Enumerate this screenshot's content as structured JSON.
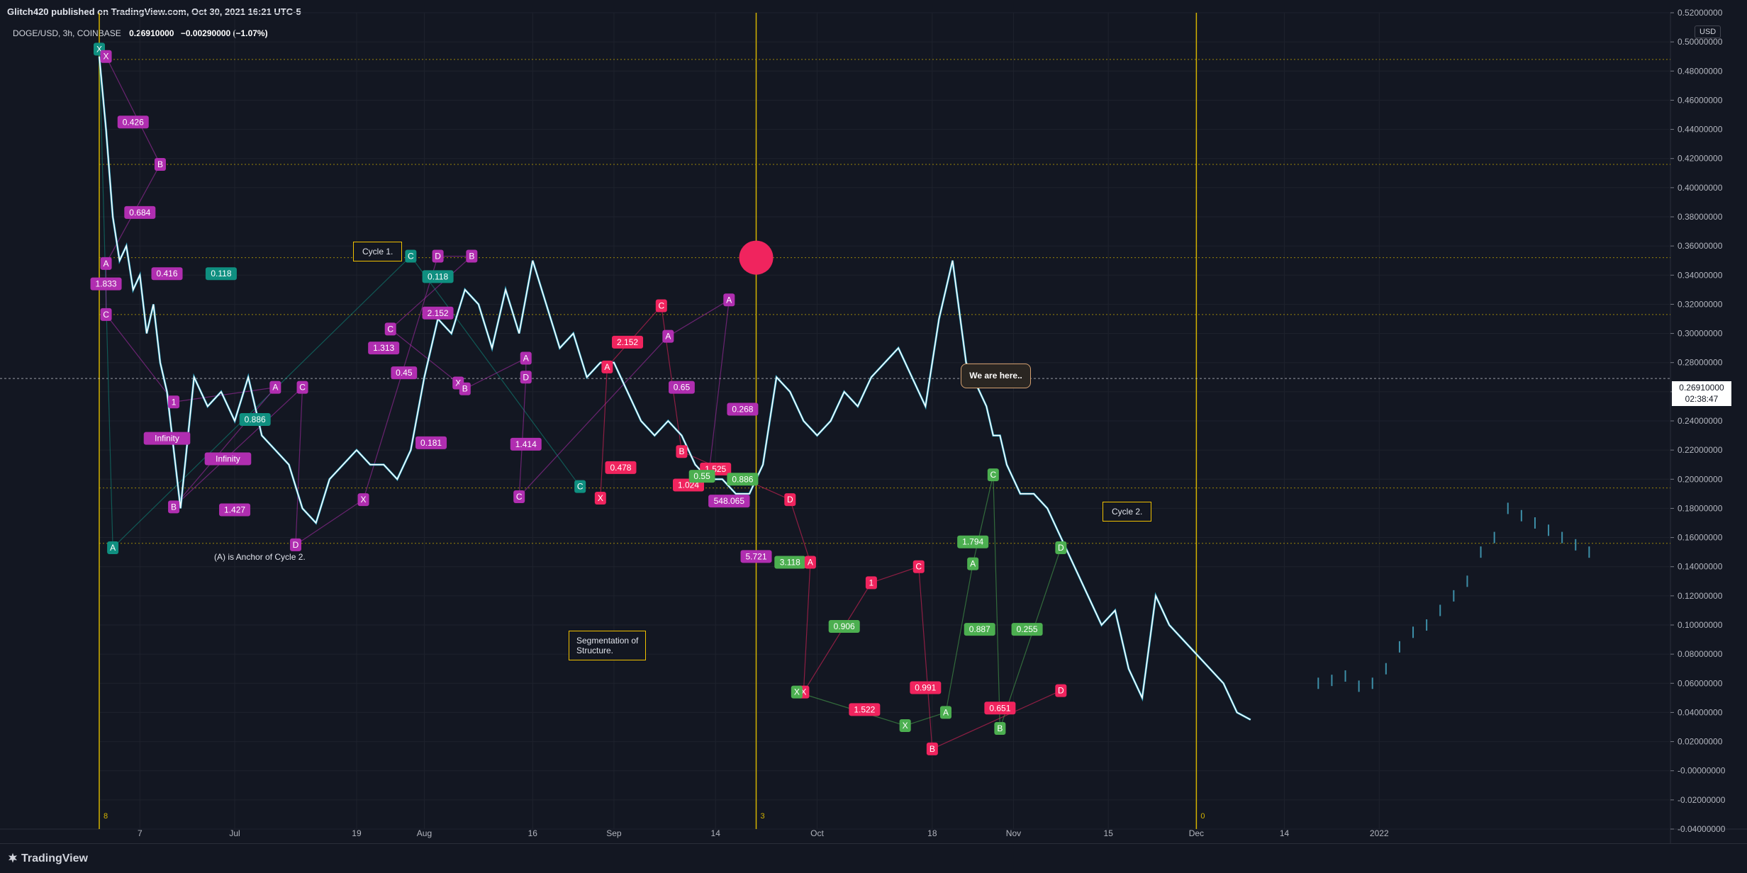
{
  "header": {
    "published": "Glitch420 published on TradingView.com, Oct 30, 2021 16:21 UTC-5",
    "symbol": "DOGE/USD, 3h, COINBASE",
    "price": "0.26910000",
    "change": "−0.00290000 (−1.07%)"
  },
  "currency_button": "USD",
  "price_tag": {
    "price": "0.26910000",
    "countdown": "02:38:47"
  },
  "notes": {
    "cycle1": "Cycle 1.",
    "cycle2": "Cycle 2.",
    "anchor": "(A) is Anchor of Cycle 2.",
    "segmentation_line1": "Segmentation of",
    "segmentation_line2": "Structure.",
    "we_are_here": "We are here.."
  },
  "footer": {
    "logo": "TradingView"
  },
  "colors": {
    "background": "#131722",
    "price_line": "#ffffff",
    "price_line_alt": "#29b6d8",
    "purple": "#9c27b0",
    "magenta_label": "#b02eb0",
    "pink": "#f0245e",
    "teal": "#0f8f80",
    "green": "#4caf50",
    "gold": "#d4b300",
    "grid": "#1e222d"
  },
  "chart_data": {
    "type": "line",
    "symbol": "DOGE/USD",
    "interval": "3h",
    "exchange": "COINBASE",
    "ylim": [
      -0.04,
      0.52
    ],
    "y_ticks": [
      "0.52000000",
      "0.50000000",
      "0.48000000",
      "0.46000000",
      "0.44000000",
      "0.42000000",
      "0.40000000",
      "0.38000000",
      "0.36000000",
      "0.34000000",
      "0.32000000",
      "0.30000000",
      "0.28000000",
      "0.26000000",
      "0.24000000",
      "0.22000000",
      "0.20000000",
      "0.18000000",
      "0.16000000",
      "0.14000000",
      "0.12000000",
      "0.10000000",
      "0.08000000",
      "0.06000000",
      "0.04000000",
      "0.02000000",
      "-0.00000000",
      "-0.02000000",
      "-0.04000000"
    ],
    "x_ticks": [
      "7",
      "Jul",
      "19",
      "Aug",
      "16",
      "Sep",
      "14",
      "Oct",
      "18",
      "Nov",
      "15",
      "Dec",
      "14",
      "2022"
    ],
    "x_range_days": [
      0,
      232
    ],
    "x_tick_days": [
      6,
      20,
      38,
      48,
      64,
      76,
      91,
      106,
      123,
      135,
      149,
      162,
      175,
      189
    ],
    "series": [
      {
        "values_x_days": [
          0,
          1,
          2,
          3,
          4,
          5,
          6,
          7,
          8,
          9,
          10,
          12,
          14,
          16,
          18,
          20,
          22,
          24,
          26,
          28,
          30,
          32,
          34,
          36,
          38,
          40,
          42,
          44,
          46,
          48,
          50,
          52,
          54,
          56,
          58,
          60,
          62,
          64,
          66,
          68,
          70,
          72,
          74,
          76,
          78,
          80,
          82,
          84,
          86,
          88,
          90,
          92,
          94,
          96,
          98,
          100,
          102,
          104,
          106,
          108,
          110,
          112,
          114,
          116,
          118,
          120,
          122,
          124,
          126,
          128,
          130,
          131,
          132,
          133,
          134,
          135,
          136,
          138,
          140,
          142,
          144,
          146,
          148,
          150,
          152,
          154,
          156,
          158,
          160,
          162,
          164,
          166,
          168,
          170
        ],
        "values_y": [
          0.49,
          0.44,
          0.38,
          0.35,
          0.36,
          0.33,
          0.34,
          0.3,
          0.32,
          0.28,
          0.26,
          0.18,
          0.27,
          0.25,
          0.26,
          0.24,
          0.27,
          0.23,
          0.22,
          0.21,
          0.18,
          0.17,
          0.2,
          0.21,
          0.22,
          0.21,
          0.21,
          0.2,
          0.22,
          0.27,
          0.31,
          0.3,
          0.33,
          0.32,
          0.29,
          0.33,
          0.3,
          0.35,
          0.32,
          0.29,
          0.3,
          0.27,
          0.28,
          0.28,
          0.26,
          0.24,
          0.23,
          0.24,
          0.23,
          0.21,
          0.2,
          0.2,
          0.19,
          0.19,
          0.21,
          0.27,
          0.26,
          0.24,
          0.23,
          0.24,
          0.26,
          0.25,
          0.27,
          0.28,
          0.29,
          0.27,
          0.25,
          0.31,
          0.35,
          0.28,
          0.26,
          0.25,
          0.23,
          0.23,
          0.21,
          0.2,
          0.19,
          0.19,
          0.18,
          0.16,
          0.14,
          0.12,
          0.1,
          0.11,
          0.07,
          0.05,
          0.12,
          0.1,
          0.09,
          0.08,
          0.07,
          0.06,
          0.04,
          0.035
        ]
      }
    ],
    "forecast_bars": {
      "values_x_days": [
        180,
        182,
        184,
        186,
        188,
        190,
        192,
        194,
        196,
        198,
        200,
        202,
        204,
        206,
        208,
        210,
        212,
        214,
        216,
        218,
        220
      ],
      "values_y": [
        0.06,
        0.062,
        0.065,
        0.058,
        0.06,
        0.07,
        0.085,
        0.095,
        0.1,
        0.11,
        0.12,
        0.13,
        0.15,
        0.16,
        0.18,
        0.175,
        0.17,
        0.165,
        0.16,
        0.155,
        0.15
      ]
    },
    "pattern_labels": [
      {
        "text": "X",
        "x": 0,
        "y": 0.495,
        "color": "teal"
      },
      {
        "text": "X",
        "x": 1,
        "y": 0.49,
        "color": "purple"
      },
      {
        "text": "0.426",
        "x": 5,
        "y": 0.445,
        "color": "purple"
      },
      {
        "text": "B",
        "x": 9,
        "y": 0.416,
        "color": "purple"
      },
      {
        "text": "0.684",
        "x": 6,
        "y": 0.383,
        "color": "purple"
      },
      {
        "text": "A",
        "x": 1,
        "y": 0.348,
        "color": "purple"
      },
      {
        "text": "1.833",
        "x": 1,
        "y": 0.334,
        "color": "purple"
      },
      {
        "text": "0.416",
        "x": 10,
        "y": 0.341,
        "color": "purple"
      },
      {
        "text": "0.118",
        "x": 18,
        "y": 0.341,
        "color": "teal"
      },
      {
        "text": "C",
        "x": 1,
        "y": 0.313,
        "color": "purple"
      },
      {
        "text": "1",
        "x": 11,
        "y": 0.253,
        "color": "purple"
      },
      {
        "text": "Infinity",
        "x": 10,
        "y": 0.228,
        "color": "purple"
      },
      {
        "text": "Infinity",
        "x": 19,
        "y": 0.214,
        "color": "purple"
      },
      {
        "text": "0.886",
        "x": 23,
        "y": 0.241,
        "color": "teal"
      },
      {
        "text": "A",
        "x": 26,
        "y": 0.263,
        "color": "purple"
      },
      {
        "text": "1.427",
        "x": 20,
        "y": 0.179,
        "color": "purple"
      },
      {
        "text": "B",
        "x": 11,
        "y": 0.181,
        "color": "purple"
      },
      {
        "text": "C",
        "x": 30,
        "y": 0.263,
        "color": "purple"
      },
      {
        "text": "D",
        "x": 29,
        "y": 0.155,
        "color": "purple"
      },
      {
        "text": "A",
        "x": 2,
        "y": 0.153,
        "color": "teal"
      },
      {
        "text": "X",
        "x": 39,
        "y": 0.186,
        "color": "purple"
      },
      {
        "text": "C",
        "x": 46,
        "y": 0.353,
        "color": "teal"
      },
      {
        "text": "D",
        "x": 50,
        "y": 0.353,
        "color": "purple"
      },
      {
        "text": "B",
        "x": 55,
        "y": 0.353,
        "color": "purple"
      },
      {
        "text": "0.118",
        "x": 50,
        "y": 0.339,
        "color": "teal"
      },
      {
        "text": "2.152",
        "x": 50,
        "y": 0.314,
        "color": "purple"
      },
      {
        "text": "1.313",
        "x": 42,
        "y": 0.29,
        "color": "purple"
      },
      {
        "text": "C",
        "x": 43,
        "y": 0.303,
        "color": "purple"
      },
      {
        "text": "0.45",
        "x": 45,
        "y": 0.273,
        "color": "purple"
      },
      {
        "text": "X",
        "x": 53,
        "y": 0.266,
        "color": "purple"
      },
      {
        "text": "B",
        "x": 54,
        "y": 0.262,
        "color": "purple"
      },
      {
        "text": "0.181",
        "x": 49,
        "y": 0.225,
        "color": "purple"
      },
      {
        "text": "A",
        "x": 63,
        "y": 0.283,
        "color": "purple"
      },
      {
        "text": "D",
        "x": 63,
        "y": 0.27,
        "color": "purple"
      },
      {
        "text": "1.414",
        "x": 63,
        "y": 0.224,
        "color": "purple"
      },
      {
        "text": "C",
        "x": 62,
        "y": 0.188,
        "color": "purple"
      },
      {
        "text": "C",
        "x": 71,
        "y": 0.195,
        "color": "teal"
      },
      {
        "text": "X",
        "x": 74,
        "y": 0.187,
        "color": "pink"
      },
      {
        "text": "A",
        "x": 75,
        "y": 0.277,
        "color": "pink"
      },
      {
        "text": "2.152",
        "x": 78,
        "y": 0.294,
        "color": "pink"
      },
      {
        "text": "0.478",
        "x": 77,
        "y": 0.208,
        "color": "pink"
      },
      {
        "text": "C",
        "x": 83,
        "y": 0.319,
        "color": "pink"
      },
      {
        "text": "A",
        "x": 84,
        "y": 0.298,
        "color": "purple"
      },
      {
        "text": "0.65",
        "x": 86,
        "y": 0.263,
        "color": "purple"
      },
      {
        "text": "B",
        "x": 86,
        "y": 0.219,
        "color": "pink"
      },
      {
        "text": "1.024",
        "x": 87,
        "y": 0.196,
        "color": "pink"
      },
      {
        "text": "A",
        "x": 93,
        "y": 0.323,
        "color": "purple"
      },
      {
        "text": "0.268",
        "x": 95,
        "y": 0.248,
        "color": "purple"
      },
      {
        "text": "B",
        "x": 90,
        "y": 0.203,
        "color": "purple"
      },
      {
        "text": "1.525",
        "x": 91,
        "y": 0.207,
        "color": "pink"
      },
      {
        "text": "0.55",
        "x": 89,
        "y": 0.202,
        "color": "green"
      },
      {
        "text": "548.065",
        "x": 93,
        "y": 0.185,
        "color": "purple"
      },
      {
        "text": "0.886",
        "x": 95,
        "y": 0.2,
        "color": "green"
      },
      {
        "text": "D",
        "x": 102,
        "y": 0.186,
        "color": "pink"
      },
      {
        "text": "5.721",
        "x": 97,
        "y": 0.147,
        "color": "purple"
      },
      {
        "text": "3.118",
        "x": 102,
        "y": 0.143,
        "color": "green"
      },
      {
        "text": "A",
        "x": 105,
        "y": 0.143,
        "color": "pink"
      },
      {
        "text": "0.906",
        "x": 110,
        "y": 0.099,
        "color": "green"
      },
      {
        "text": "X",
        "x": 104,
        "y": 0.054,
        "color": "pink"
      },
      {
        "text": "X",
        "x": 103,
        "y": 0.054,
        "color": "green"
      },
      {
        "text": "1.522",
        "x": 113,
        "y": 0.042,
        "color": "pink"
      },
      {
        "text": "1",
        "x": 114,
        "y": 0.129,
        "color": "pink"
      },
      {
        "text": "C",
        "x": 121,
        "y": 0.14,
        "color": "pink"
      },
      {
        "text": "0.991",
        "x": 122,
        "y": 0.057,
        "color": "pink"
      },
      {
        "text": "X",
        "x": 119,
        "y": 0.031,
        "color": "green"
      },
      {
        "text": "B",
        "x": 123,
        "y": 0.015,
        "color": "pink"
      },
      {
        "text": "A",
        "x": 125,
        "y": 0.04,
        "color": "green"
      },
      {
        "text": "A",
        "x": 129,
        "y": 0.142,
        "color": "green"
      },
      {
        "text": "1.794",
        "x": 129,
        "y": 0.157,
        "color": "green"
      },
      {
        "text": "0.887",
        "x": 130,
        "y": 0.097,
        "color": "green"
      },
      {
        "text": "C",
        "x": 132,
        "y": 0.203,
        "color": "green"
      },
      {
        "text": "0.255",
        "x": 137,
        "y": 0.097,
        "color": "green"
      },
      {
        "text": "0.651",
        "x": 133,
        "y": 0.043,
        "color": "pink"
      },
      {
        "text": "B",
        "x": 133,
        "y": 0.029,
        "color": "green"
      },
      {
        "text": "D",
        "x": 142,
        "y": 0.153,
        "color": "green"
      },
      {
        "text": "D",
        "x": 142,
        "y": 0.055,
        "color": "pink"
      }
    ],
    "vertical_markers": [
      {
        "x": 0,
        "label": "8"
      },
      {
        "x": 97,
        "label": "3"
      },
      {
        "x": 162,
        "label": "0"
      }
    ],
    "reference_levels": [
      0.488,
      0.416,
      0.352,
      0.313,
      0.194,
      0.156
    ],
    "current_price": 0.2691,
    "grid": true
  }
}
